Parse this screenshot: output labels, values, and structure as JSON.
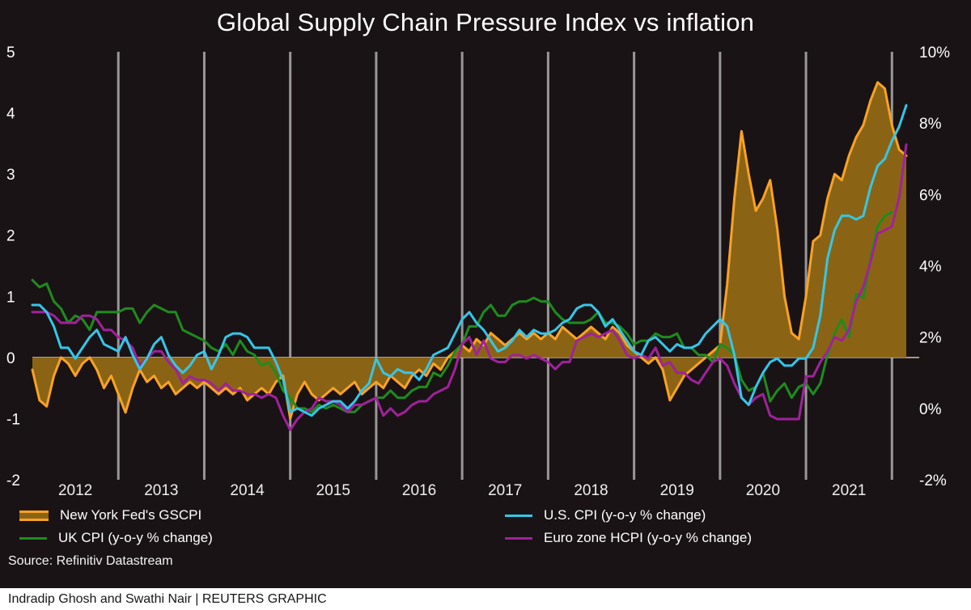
{
  "title": "Global Supply Chain Pressure Index vs inflation",
  "source": "Source: Refinitiv Datastream",
  "credit": "Indradip Ghosh and Swathi Nair | REUTERS GRAPHIC",
  "chart_data": {
    "type": "line",
    "x_start": "2012-01",
    "x_months": 123,
    "x_year_labels": [
      "2012",
      "2013",
      "2014",
      "2015",
      "2016",
      "2017",
      "2018",
      "2019",
      "2020",
      "2021"
    ],
    "left_axis": {
      "ticks": [
        5,
        4,
        3,
        2,
        1,
        0,
        -1,
        -2
      ],
      "lim": [
        -2,
        5
      ]
    },
    "right_axis": {
      "ticks": [
        "10%",
        "8%",
        "6%",
        "4%",
        "2%",
        "0%",
        "-2%"
      ],
      "tick_values": [
        10,
        8,
        6,
        4,
        2,
        0,
        -2
      ],
      "lim": [
        -2,
        10
      ]
    },
    "grid": "vertical-yearly",
    "grid_color": "#979797",
    "zero_line_color": "#cfc3b2",
    "background": "#1a1315",
    "legend_position": "bottom",
    "series": [
      {
        "name": "New York Fed's GSCPI",
        "axis": "left",
        "type": "area",
        "color": "#f9a226",
        "fill": "#8a6414",
        "values": [
          -0.2,
          -0.7,
          -0.8,
          -0.3,
          0.0,
          -0.1,
          -0.3,
          -0.1,
          0.0,
          -0.2,
          -0.5,
          -0.3,
          -0.6,
          -0.9,
          -0.5,
          -0.2,
          -0.4,
          -0.3,
          -0.5,
          -0.4,
          -0.6,
          -0.5,
          -0.4,
          -0.5,
          -0.4,
          -0.5,
          -0.6,
          -0.5,
          -0.6,
          -0.5,
          -0.7,
          -0.6,
          -0.5,
          -0.6,
          -0.4,
          -0.3,
          -1.0,
          -0.6,
          -0.4,
          -0.6,
          -0.7,
          -0.6,
          -0.5,
          -0.6,
          -0.5,
          -0.4,
          -0.6,
          -0.5,
          -0.4,
          -0.5,
          -0.3,
          -0.4,
          -0.5,
          -0.3,
          -0.2,
          -0.3,
          -0.1,
          -0.2,
          0.0,
          0.1,
          0.2,
          0.1,
          0.3,
          0.2,
          0.4,
          0.3,
          0.2,
          0.3,
          0.4,
          0.3,
          0.4,
          0.3,
          0.4,
          0.3,
          0.5,
          0.4,
          0.3,
          0.4,
          0.5,
          0.4,
          0.3,
          0.5,
          0.4,
          0.2,
          0.1,
          0.0,
          -0.1,
          0.0,
          -0.2,
          -0.7,
          -0.5,
          -0.3,
          -0.2,
          -0.1,
          0.0,
          0.1,
          0.2,
          1.2,
          2.6,
          3.7,
          3.0,
          2.4,
          2.6,
          2.9,
          2.1,
          1.0,
          0.4,
          0.3,
          1.0,
          1.9,
          2.0,
          2.6,
          3.0,
          2.9,
          3.3,
          3.6,
          3.8,
          4.2,
          4.5,
          4.4,
          3.8,
          3.4,
          3.3
        ]
      },
      {
        "name": "UK CPI (y-o-y % change)",
        "axis": "right",
        "type": "line",
        "color": "#1e8c1e",
        "values": [
          3.6,
          3.4,
          3.5,
          3.0,
          2.8,
          2.4,
          2.6,
          2.5,
          2.2,
          2.7,
          2.7,
          2.7,
          2.7,
          2.8,
          2.8,
          2.4,
          2.7,
          2.9,
          2.8,
          2.7,
          2.7,
          2.2,
          2.1,
          2.0,
          1.9,
          1.7,
          1.6,
          1.8,
          1.5,
          1.9,
          1.6,
          1.5,
          1.2,
          1.3,
          1.0,
          0.5,
          0.3,
          0.0,
          0.0,
          -0.1,
          0.1,
          0.0,
          0.1,
          0.0,
          -0.1,
          -0.1,
          0.1,
          0.2,
          0.3,
          0.3,
          0.5,
          0.3,
          0.3,
          0.5,
          0.6,
          0.6,
          1.0,
          0.9,
          1.2,
          1.6,
          1.8,
          2.3,
          2.3,
          2.7,
          2.9,
          2.6,
          2.6,
          2.9,
          3.0,
          3.0,
          3.1,
          3.0,
          3.0,
          2.7,
          2.5,
          2.4,
          2.4,
          2.4,
          2.5,
          2.7,
          2.4,
          2.4,
          2.3,
          2.1,
          1.8,
          1.9,
          1.9,
          2.1,
          2.0,
          2.0,
          2.1,
          1.7,
          1.7,
          1.5,
          1.5,
          1.3,
          1.8,
          1.7,
          1.5,
          0.8,
          0.5,
          0.6,
          1.0,
          0.2,
          0.5,
          0.7,
          0.3,
          0.6,
          0.7,
          0.4,
          0.7,
          1.5,
          2.1,
          2.5,
          2.0,
          3.2,
          3.1,
          4.2,
          5.1,
          5.4,
          5.5,
          null,
          null
        ]
      },
      {
        "name": "Euro zone HCPI (y-o-y % change)",
        "axis": "right",
        "type": "line",
        "color": "#a1219c",
        "values": [
          2.7,
          2.7,
          2.7,
          2.6,
          2.4,
          2.4,
          2.4,
          2.6,
          2.6,
          2.5,
          2.2,
          2.2,
          2.0,
          1.9,
          1.7,
          1.2,
          1.4,
          1.6,
          1.6,
          1.3,
          1.1,
          0.7,
          0.9,
          0.8,
          0.8,
          0.7,
          0.5,
          0.7,
          0.5,
          0.5,
          0.4,
          0.4,
          0.3,
          0.4,
          0.3,
          -0.2,
          -0.6,
          -0.3,
          -0.1,
          0.0,
          0.3,
          0.2,
          0.2,
          0.1,
          -0.1,
          0.1,
          0.1,
          0.2,
          0.3,
          -0.2,
          0.0,
          -0.2,
          -0.1,
          0.1,
          0.2,
          0.2,
          0.4,
          0.5,
          0.6,
          1.1,
          1.8,
          2.0,
          1.5,
          1.9,
          1.4,
          1.3,
          1.3,
          1.5,
          1.5,
          1.4,
          1.5,
          1.4,
          1.3,
          1.1,
          1.3,
          1.3,
          1.9,
          2.0,
          2.1,
          2.0,
          2.1,
          2.2,
          1.9,
          1.5,
          1.4,
          1.5,
          1.4,
          1.7,
          1.2,
          1.3,
          1.0,
          1.0,
          0.8,
          0.7,
          1.0,
          1.3,
          1.4,
          1.2,
          0.7,
          0.3,
          0.1,
          0.3,
          0.4,
          -0.2,
          -0.3,
          -0.3,
          -0.3,
          -0.3,
          0.9,
          0.9,
          1.3,
          1.6,
          2.0,
          1.9,
          2.2,
          3.0,
          3.4,
          4.1,
          4.9,
          5.0,
          5.1,
          5.9,
          7.4
        ]
      },
      {
        "name": "U.S. CPI (y-o-y % change)",
        "axis": "right",
        "type": "line",
        "color": "#35c6e8",
        "values": [
          2.9,
          2.9,
          2.7,
          2.3,
          1.7,
          1.7,
          1.4,
          1.7,
          2.0,
          2.2,
          1.8,
          1.7,
          1.6,
          2.0,
          1.5,
          1.1,
          1.4,
          1.8,
          2.0,
          1.5,
          1.2,
          1.0,
          1.2,
          1.5,
          1.6,
          1.1,
          1.5,
          2.0,
          2.1,
          2.1,
          2.0,
          1.7,
          1.7,
          1.7,
          1.3,
          0.8,
          -0.1,
          0.0,
          -0.1,
          -0.2,
          0.0,
          0.1,
          0.2,
          0.2,
          0.0,
          0.2,
          0.5,
          0.7,
          1.4,
          1.0,
          0.9,
          1.1,
          1.0,
          1.0,
          0.8,
          1.1,
          1.5,
          1.6,
          1.7,
          2.1,
          2.5,
          2.7,
          2.4,
          2.2,
          1.9,
          1.6,
          1.7,
          1.9,
          2.2,
          2.0,
          2.2,
          2.1,
          2.1,
          2.2,
          2.4,
          2.5,
          2.8,
          2.9,
          2.9,
          2.7,
          2.3,
          2.5,
          2.2,
          1.9,
          1.6,
          1.5,
          1.9,
          2.0,
          1.8,
          1.6,
          1.8,
          1.7,
          1.7,
          1.8,
          2.1,
          2.3,
          2.5,
          2.3,
          1.5,
          0.3,
          0.1,
          0.6,
          1.0,
          1.3,
          1.4,
          1.2,
          1.2,
          1.4,
          1.4,
          1.7,
          2.6,
          4.2,
          5.0,
          5.4,
          5.4,
          5.3,
          5.4,
          6.2,
          6.8,
          7.0,
          7.5,
          7.9,
          8.5
        ]
      }
    ]
  }
}
